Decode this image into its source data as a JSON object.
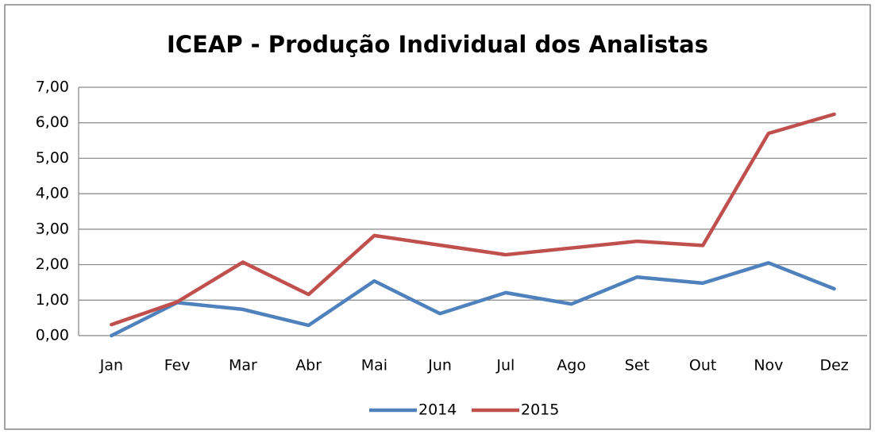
{
  "chart_data": {
    "type": "line",
    "title": "ICEAP - Produção Individual dos Analistas",
    "categories": [
      "Jan",
      "Fev",
      "Mar",
      "Abr",
      "Mai",
      "Jun",
      "Jul",
      "Ago",
      "Set",
      "Out",
      "Nov",
      "Dez"
    ],
    "series": [
      {
        "name": "2014",
        "color": "#4f81bd",
        "values": [
          0,
          0.93,
          0.74,
          0.29,
          1.54,
          0.62,
          1.21,
          0.89,
          1.65,
          1.48,
          2.05,
          1.32
        ]
      },
      {
        "name": "2015",
        "color": "#c0504d",
        "values": [
          0.31,
          0.95,
          2.07,
          1.16,
          2.82,
          2.55,
          2.28,
          2.47,
          2.66,
          2.54,
          5.7,
          6.24
        ]
      }
    ],
    "ylim": [
      0,
      7
    ],
    "yticks": [
      {
        "value": 0,
        "label": "0,00"
      },
      {
        "value": 1,
        "label": "1,00"
      },
      {
        "value": 2,
        "label": "2,00"
      },
      {
        "value": 3,
        "label": "3,00"
      },
      {
        "value": 4,
        "label": "4,00"
      },
      {
        "value": 5,
        "label": "5,00"
      },
      {
        "value": 6,
        "label": "6,00"
      },
      {
        "value": 7,
        "label": "7,00"
      }
    ],
    "grid": true,
    "legend": "bottom"
  }
}
